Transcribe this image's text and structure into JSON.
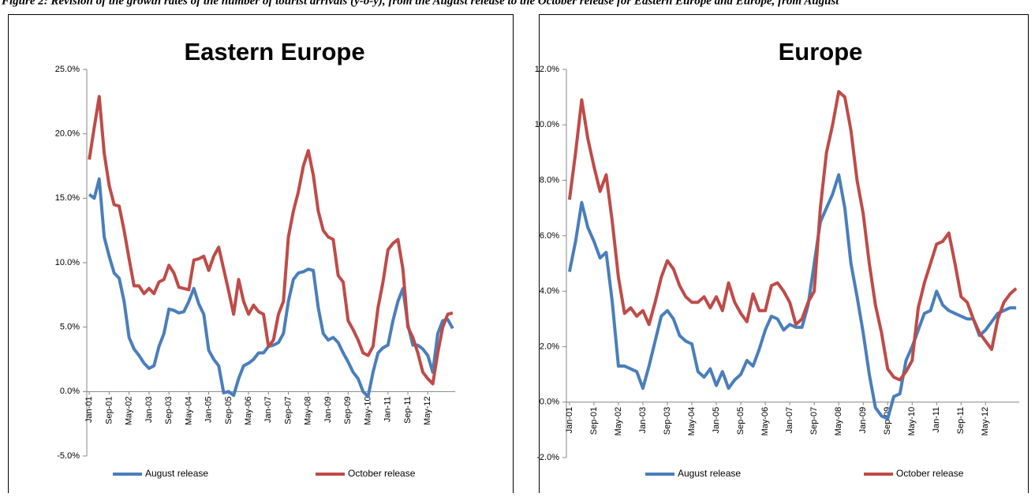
{
  "caption": "Figure 2: Revision of the growth rates of the number of tourist arrivals (y-o-y), from the August release to the October release for Eastern Europe and Europe, from August",
  "chart_data": [
    {
      "type": "line",
      "title": "Eastern Europe",
      "categories": [
        "Jan-01",
        null,
        null,
        null,
        "Sep-01",
        null,
        null,
        null,
        "May-02",
        null,
        null,
        null,
        "Jan-03",
        null,
        null,
        null,
        "Sep-03",
        null,
        null,
        null,
        "May-04",
        null,
        null,
        null,
        "Jan-05",
        null,
        null,
        null,
        "Sep-05",
        null,
        null,
        null,
        "May-06",
        null,
        null,
        null,
        "Jan-07",
        null,
        null,
        null,
        "Sep-07",
        null,
        null,
        null,
        "May-08",
        null,
        null,
        null,
        "Jan-09",
        null,
        null,
        null,
        "Sep-09",
        null,
        null,
        null,
        "May-10",
        null,
        null,
        null,
        "Jan-11",
        null,
        null,
        null,
        "Sep-11",
        null,
        null,
        null,
        "May-12",
        null,
        null,
        null,
        null,
        null
      ],
      "series": [
        {
          "name": "August release",
          "color": "#4a7ebb",
          "values": [
            15.3,
            15.0,
            16.5,
            12.0,
            10.5,
            9.2,
            8.8,
            7.0,
            4.2,
            3.3,
            2.8,
            2.2,
            1.8,
            2.0,
            3.5,
            4.5,
            6.4,
            6.3,
            6.1,
            6.2,
            7.0,
            8.0,
            6.8,
            6.0,
            3.2,
            2.5,
            2.0,
            -0.1,
            0.0,
            -0.3,
            1.0,
            2.0,
            2.2,
            2.5,
            3.0,
            3.0,
            3.5,
            3.6,
            3.8,
            4.5,
            7.0,
            8.7,
            9.2,
            9.3,
            9.5,
            9.4,
            6.5,
            4.5,
            4.0,
            4.2,
            3.8,
            3.0,
            2.3,
            1.5,
            1.0,
            0.0,
            -0.4,
            1.5,
            3.0,
            3.4,
            3.6,
            5.5,
            7.0,
            8.0,
            5.2,
            3.6,
            3.6,
            3.3,
            2.8,
            1.5,
            4.5,
            5.5,
            5.6,
            4.9
          ]
        },
        {
          "name": "October release",
          "color": "#be4b48",
          "values": [
            18.0,
            20.5,
            22.9,
            18.5,
            16.0,
            14.5,
            14.4,
            12.5,
            10.3,
            8.2,
            8.2,
            7.6,
            8.0,
            7.6,
            8.5,
            8.7,
            9.8,
            9.2,
            8.1,
            8.0,
            7.9,
            10.2,
            10.3,
            10.5,
            9.4,
            10.5,
            11.2,
            9.5,
            7.8,
            6.0,
            8.7,
            7.0,
            6.0,
            6.7,
            6.2,
            6.0,
            3.5,
            4.0,
            6.0,
            7.0,
            12.0,
            14.0,
            15.5,
            17.5,
            18.7,
            16.8,
            14.0,
            12.5,
            12.0,
            11.8,
            9.0,
            8.5,
            5.5,
            4.8,
            4.0,
            3.0,
            2.8,
            3.5,
            6.5,
            8.5,
            11.0,
            11.5,
            11.8,
            9.5,
            5.0,
            4.2,
            3.0,
            1.5,
            1.0,
            0.6,
            3.0,
            5.0,
            6.0,
            6.1
          ]
        }
      ],
      "ylim": [
        -5,
        25
      ],
      "yticks": [
        {
          "value": -5,
          "label": "-5.0%"
        },
        {
          "value": 0,
          "label": "0.0%"
        },
        {
          "value": 5,
          "label": "5.0%"
        },
        {
          "value": 10,
          "label": "10.0%"
        },
        {
          "value": 15,
          "label": "15.0%"
        },
        {
          "value": 20,
          "label": "20.0%"
        },
        {
          "value": 25,
          "label": "25.0%"
        }
      ],
      "grid": false,
      "legend": "bottom"
    },
    {
      "type": "line",
      "title": "Europe",
      "categories": [
        "Jan-01",
        null,
        null,
        null,
        "Sep-01",
        null,
        null,
        null,
        "May-02",
        null,
        null,
        null,
        "Jan-03",
        null,
        null,
        null,
        "Sep-03",
        null,
        null,
        null,
        "May-04",
        null,
        null,
        null,
        "Jan-05",
        null,
        null,
        null,
        "Sep-05",
        null,
        null,
        null,
        "May-06",
        null,
        null,
        null,
        "Jan-07",
        null,
        null,
        null,
        "Sep-07",
        null,
        null,
        null,
        "May-08",
        null,
        null,
        null,
        "Jan-09",
        null,
        null,
        null,
        "Sep-09",
        null,
        null,
        null,
        "May-10",
        null,
        null,
        null,
        "Jan-11",
        null,
        null,
        null,
        "Sep-11",
        null,
        null,
        null,
        "May-12",
        null,
        null,
        null,
        null,
        null
      ],
      "series": [
        {
          "name": "August release",
          "color": "#4a7ebb",
          "values": [
            4.7,
            5.8,
            7.2,
            6.3,
            5.8,
            5.2,
            5.4,
            3.6,
            1.3,
            1.3,
            1.2,
            1.1,
            0.5,
            1.3,
            2.2,
            3.1,
            3.3,
            3.0,
            2.4,
            2.2,
            2.1,
            1.1,
            0.9,
            1.2,
            0.6,
            1.1,
            0.5,
            0.8,
            1.0,
            1.5,
            1.3,
            1.9,
            2.6,
            3.1,
            3.0,
            2.6,
            2.8,
            2.7,
            2.7,
            3.5,
            5.0,
            6.5,
            7.0,
            7.5,
            8.2,
            7.0,
            5.0,
            3.8,
            2.5,
            1.0,
            -0.2,
            -0.5,
            -0.6,
            0.2,
            0.3,
            1.5,
            2.0,
            2.6,
            3.2,
            3.3,
            4.0,
            3.5,
            3.3,
            3.2,
            3.1,
            3.0,
            3.0,
            2.4,
            2.6,
            2.9,
            3.2,
            3.3,
            3.4,
            3.4
          ]
        },
        {
          "name": "October release",
          "color": "#be4b48",
          "values": [
            7.3,
            9.0,
            10.9,
            9.5,
            8.5,
            7.6,
            8.2,
            6.5,
            4.5,
            3.2,
            3.4,
            3.1,
            3.3,
            2.8,
            3.6,
            4.5,
            5.1,
            4.8,
            4.2,
            3.8,
            3.6,
            3.6,
            3.8,
            3.4,
            3.8,
            3.3,
            4.3,
            3.6,
            3.2,
            2.9,
            3.9,
            3.3,
            3.3,
            4.2,
            4.3,
            4.0,
            3.6,
            2.8,
            3.0,
            3.6,
            4.0,
            7.0,
            9.0,
            10.0,
            11.2,
            11.0,
            9.8,
            8.0,
            6.8,
            5.0,
            3.5,
            2.5,
            1.2,
            0.9,
            0.8,
            1.1,
            1.5,
            3.4,
            4.3,
            5.0,
            5.7,
            5.8,
            6.1,
            5.0,
            3.8,
            3.6,
            3.0,
            2.5,
            2.2,
            1.9,
            3.0,
            3.6,
            3.9,
            4.1
          ]
        }
      ],
      "ylim": [
        -2,
        12
      ],
      "yticks": [
        {
          "value": -2,
          "label": "-2.0%"
        },
        {
          "value": 0,
          "label": "0.0%"
        },
        {
          "value": 2,
          "label": "2.0%"
        },
        {
          "value": 4,
          "label": "4.0%"
        },
        {
          "value": 6,
          "label": "6.0%"
        },
        {
          "value": 8,
          "label": "8.0%"
        },
        {
          "value": 10,
          "label": "10.0%"
        },
        {
          "value": 12,
          "label": "12.0%"
        }
      ],
      "grid": false,
      "legend": "bottom"
    }
  ]
}
